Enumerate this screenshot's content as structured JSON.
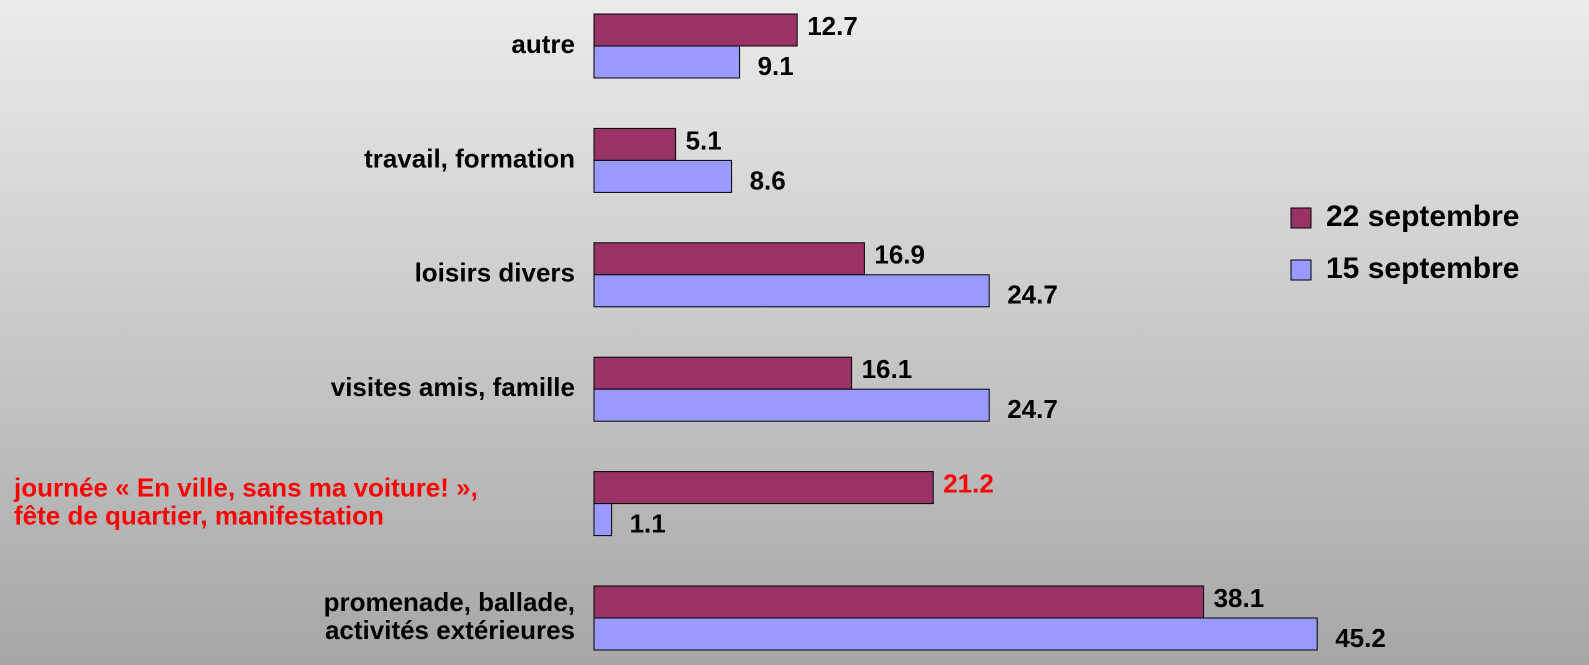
{
  "chart_data": {
    "type": "hbar",
    "categories": [
      "autre",
      "travail, formation",
      "loisirs divers",
      "visites amis, famille",
      "journée « En ville, sans ma voiture! »,\nfête de quartier, manifestation",
      "promenade, ballade,\nactivités extérieures"
    ],
    "series": [
      {
        "name": "22 septembre",
        "color": "#993366",
        "values": [
          12.7,
          5.1,
          16.9,
          16.1,
          21.2,
          38.1
        ]
      },
      {
        "name": "15 septembre",
        "color": "#9999ff",
        "values": [
          9.1,
          8.6,
          24.7,
          24.7,
          1.1,
          45.2
        ]
      }
    ],
    "highlight_category": 4,
    "highlight_color": "#ff0000",
    "legend": "right"
  }
}
